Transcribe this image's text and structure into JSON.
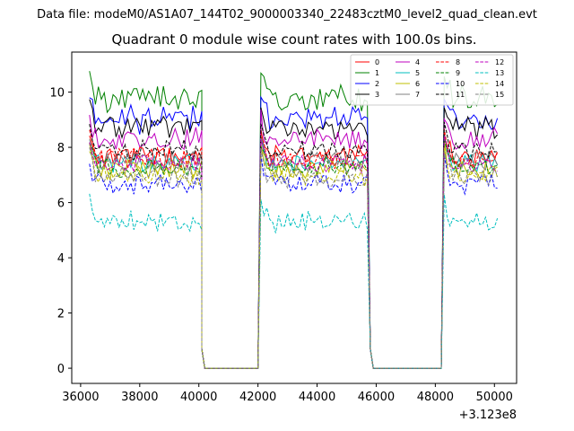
{
  "suptitle": "Data file: modeM0/AS1A07_144T02_9000003340_22483cztM0_level2_quad_clean.evt",
  "chart_data": {
    "type": "line",
    "title": "Quadrant 0 module wise count rates with 100.0s bins.",
    "xlabel": "",
    "ylabel": "",
    "x_offset_label": "+3.123e8",
    "xlim": [
      35700,
      50750
    ],
    "ylim": [
      -0.55,
      11.45
    ],
    "xticks": [
      36000,
      38000,
      40000,
      42000,
      44000,
      46000,
      48000,
      50000
    ],
    "yticks": [
      0,
      2,
      4,
      6,
      8,
      10
    ],
    "grid": false,
    "legend_position": "top-right",
    "legend_columns": 4,
    "bin_seconds": 100,
    "segments": [
      {
        "start": 36300,
        "end": 40100
      },
      {
        "start": 42100,
        "end": 45700
      },
      {
        "start": 48300,
        "end": 50100
      }
    ],
    "gaps": [
      {
        "start": 40100,
        "end": 42000
      },
      {
        "start": 45800,
        "end": 48200
      }
    ],
    "series": [
      {
        "name": "0",
        "color": "#ff0000",
        "dash": "solid",
        "level": 7.7,
        "amp": 0.3
      },
      {
        "name": "1",
        "color": "#008000",
        "dash": "solid",
        "level": 9.8,
        "amp": 0.45
      },
      {
        "name": "2",
        "color": "#0000ff",
        "dash": "solid",
        "level": 9.0,
        "amp": 0.45
      },
      {
        "name": "3",
        "color": "#000000",
        "dash": "solid",
        "level": 8.7,
        "amp": 0.35
      },
      {
        "name": "4",
        "color": "#bf00bf",
        "dash": "solid",
        "level": 8.3,
        "amp": 0.35
      },
      {
        "name": "5",
        "color": "#00bfbf",
        "dash": "solid",
        "level": 7.4,
        "amp": 0.3
      },
      {
        "name": "6",
        "color": "#bfbf00",
        "dash": "solid",
        "level": 7.2,
        "amp": 0.3
      },
      {
        "name": "7",
        "color": "#808080",
        "dash": "solid",
        "level": 7.5,
        "amp": 0.3
      },
      {
        "name": "8",
        "color": "#ff0000",
        "dash": "dashed",
        "level": 7.6,
        "amp": 0.3
      },
      {
        "name": "9",
        "color": "#008000",
        "dash": "dashed",
        "level": 7.3,
        "amp": 0.3
      },
      {
        "name": "10",
        "color": "#0000ff",
        "dash": "dashed",
        "level": 6.7,
        "amp": 0.3
      },
      {
        "name": "11",
        "color": "#000000",
        "dash": "dashed",
        "level": 7.9,
        "amp": 0.3
      },
      {
        "name": "12",
        "color": "#bf00bf",
        "dash": "dashed",
        "level": 7.4,
        "amp": 0.3
      },
      {
        "name": "13",
        "color": "#00bfbf",
        "dash": "dashed",
        "level": 5.3,
        "amp": 0.35
      },
      {
        "name": "14",
        "color": "#bfbf00",
        "dash": "dashed",
        "level": 7.0,
        "amp": 0.3
      },
      {
        "name": "15",
        "color": "#808080",
        "dash": "dashed",
        "level": 6.9,
        "amp": 0.3
      }
    ]
  }
}
